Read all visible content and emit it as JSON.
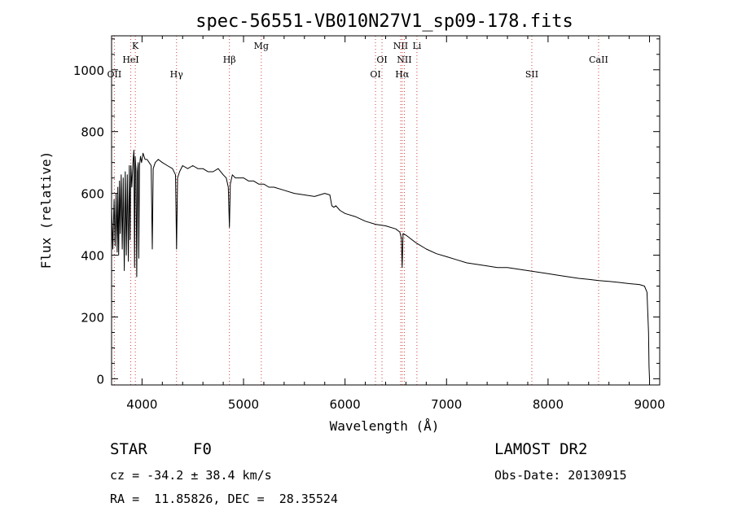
{
  "chart_data": {
    "type": "line",
    "title": "spec-56551-VB010N27V1_sp09-178.fits",
    "xlabel": "Wavelength (Å)",
    "ylabel": "Flux (relative)",
    "xlim": [
      3700,
      9100
    ],
    "ylim": [
      -20,
      1110
    ],
    "xticks": [
      4000,
      5000,
      6000,
      7000,
      8000,
      9000
    ],
    "yticks": [
      0,
      200,
      400,
      600,
      800,
      1000
    ],
    "grid": false,
    "series": [
      {
        "line_color": "#000000",
        "x": [
          3700,
          3712,
          3725,
          3735,
          3745,
          3755,
          3762,
          3770,
          3778,
          3785,
          3795,
          3805,
          3815,
          3825,
          3835,
          3845,
          3855,
          3865,
          3875,
          3882,
          3890,
          3900,
          3910,
          3920,
          3926,
          3933,
          3940,
          3948,
          3955,
          3962,
          3968,
          3975,
          3985,
          3995,
          4010,
          4030,
          4050,
          4070,
          4090,
          4101,
          4110,
          4130,
          4160,
          4200,
          4250,
          4300,
          4330,
          4340,
          4350,
          4370,
          4400,
          4450,
          4500,
          4550,
          4600,
          4650,
          4700,
          4750,
          4800,
          4830,
          4850,
          4861,
          4870,
          4890,
          4920,
          4960,
          5000,
          5050,
          5100,
          5150,
          5200,
          5250,
          5300,
          5400,
          5500,
          5600,
          5700,
          5800,
          5850,
          5870,
          5890,
          5910,
          5950,
          6000,
          6100,
          6200,
          6300,
          6400,
          6500,
          6540,
          6555,
          6563,
          6572,
          6600,
          6700,
          6800,
          6900,
          7000,
          7100,
          7200,
          7300,
          7400,
          7500,
          7600,
          7700,
          7800,
          7900,
          8000,
          8100,
          8200,
          8300,
          8400,
          8500,
          8600,
          8700,
          8800,
          8900,
          8950,
          8975,
          8990,
          8995,
          9000
        ],
        "y": [
          560,
          420,
          580,
          430,
          600,
          410,
          620,
          400,
          640,
          470,
          660,
          420,
          650,
          350,
          670,
          400,
          660,
          380,
          690,
          450,
          690,
          620,
          700,
          740,
          360,
          720,
          680,
          330,
          670,
          700,
          390,
          690,
          720,
          700,
          730,
          710,
          710,
          700,
          690,
          420,
          680,
          700,
          710,
          700,
          690,
          680,
          660,
          420,
          650,
          670,
          690,
          680,
          690,
          680,
          680,
          670,
          670,
          680,
          660,
          650,
          620,
          490,
          630,
          660,
          650,
          650,
          650,
          640,
          640,
          630,
          630,
          620,
          620,
          610,
          600,
          595,
          590,
          600,
          595,
          560,
          555,
          560,
          545,
          535,
          525,
          510,
          500,
          495,
          485,
          475,
          455,
          360,
          470,
          465,
          440,
          420,
          405,
          395,
          385,
          375,
          370,
          365,
          360,
          360,
          355,
          350,
          345,
          340,
          335,
          330,
          325,
          322,
          318,
          315,
          312,
          308,
          305,
          300,
          280,
          150,
          40,
          0
        ]
      }
    ],
    "spectral_lines": [
      {
        "label": "OII",
        "x": 3727,
        "tier": 3
      },
      {
        "label": "HeI",
        "x": 3889,
        "tier": 1
      },
      {
        "label": "K",
        "x": 3934,
        "tier": 0
      },
      {
        "label": "Hγ",
        "x": 4340,
        "tier": 3
      },
      {
        "label": "Hβ",
        "x": 4861,
        "tier": 2
      },
      {
        "label": "Mg",
        "x": 5175,
        "tier": 0
      },
      {
        "label": "OI",
        "x": 6300,
        "tier": 3
      },
      {
        "label": "OI",
        "x": 6364,
        "tier": 2
      },
      {
        "label": "NII",
        "x": 6548,
        "tier": 0
      },
      {
        "label": "NII",
        "x": 6584,
        "tier": 2
      },
      {
        "label": "Hα",
        "x": 6563,
        "tier": 3
      },
      {
        "label": "Li",
        "x": 6708,
        "tier": 0
      },
      {
        "label": "SII",
        "x": 7840,
        "tier": 3
      },
      {
        "label": "CaII",
        "x": 8498,
        "tier": 2
      }
    ]
  },
  "info": {
    "object_class": "STAR",
    "subclass": "F0",
    "survey": "LAMOST DR2",
    "cz": "cz = -34.2 ± 38.4 km/s",
    "obs_date": "Obs-Date: 20130915",
    "coords": "RA =  11.85826, DEC =  28.35524"
  }
}
